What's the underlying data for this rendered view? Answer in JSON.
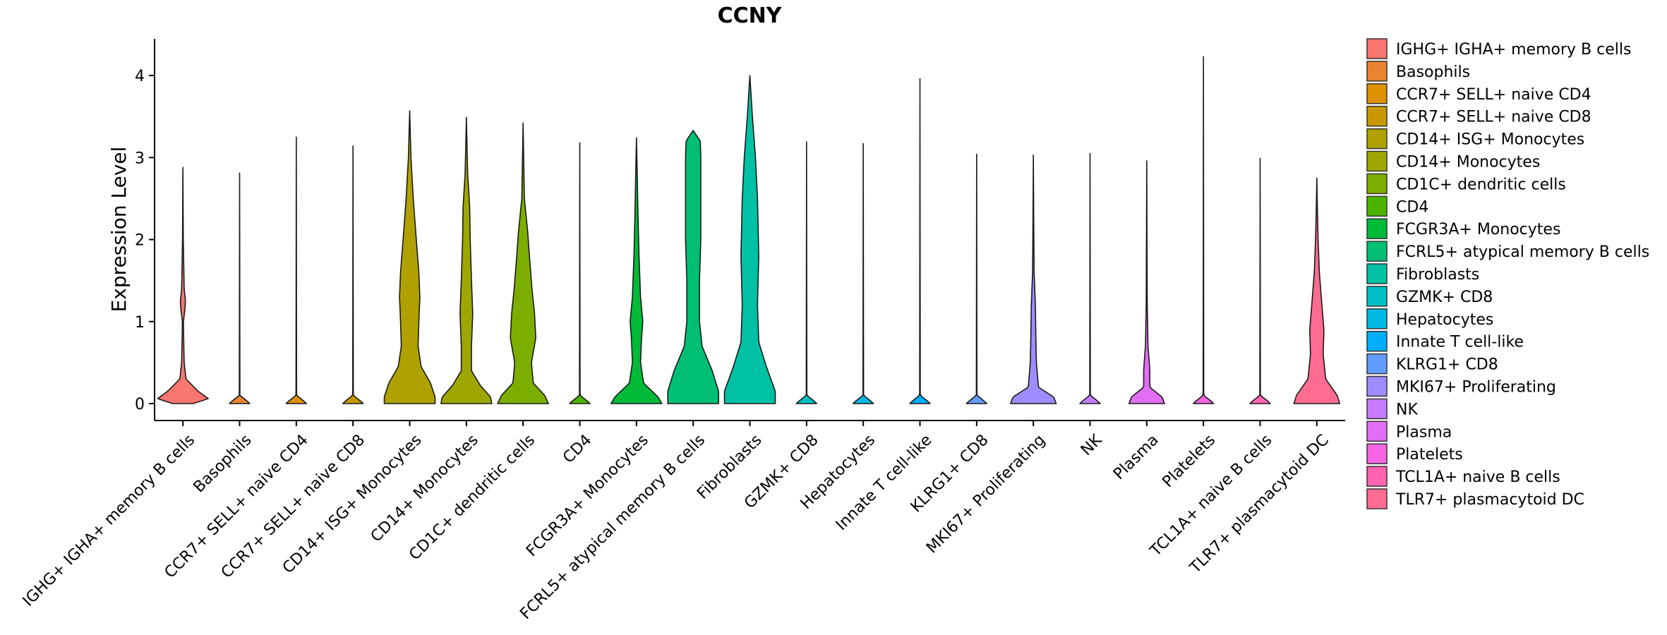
{
  "chart_data": {
    "type": "violin",
    "title": "CCNY",
    "xlabel": "",
    "ylabel": "Expression Level",
    "ylim": [
      -0.2,
      4.45
    ],
    "yticks": [
      0,
      1,
      2,
      3,
      4
    ],
    "legend_position": "right",
    "categories": [
      {
        "name": "IGHG+ IGHA+ memory B cells",
        "legend_label": " IGHG+ IGHA+ memory B cells",
        "color": "#F8766D",
        "max": 2.88,
        "peak": 1.25,
        "profile": [
          [
            0,
            0.4
          ],
          [
            0.06,
            1.0
          ],
          [
            0.15,
            0.6
          ],
          [
            0.3,
            0.12
          ],
          [
            0.5,
            0.05
          ],
          [
            0.8,
            0.03
          ],
          [
            1.0,
            0.02
          ],
          [
            1.15,
            0.08
          ],
          [
            1.25,
            0.1
          ],
          [
            1.4,
            0.05
          ],
          [
            2.0,
            0.015
          ],
          [
            2.88,
            0
          ]
        ]
      },
      {
        "name": "Basophils",
        "color": "#EA8331",
        "max": 2.81,
        "peak": 0.02,
        "profile": [
          [
            0,
            0.4
          ],
          [
            0.03,
            0.3
          ],
          [
            0.1,
            0.012
          ],
          [
            2.81,
            0
          ]
        ]
      },
      {
        "name": "CCR7+ SELL+ naive CD4",
        "color": "#DE9000",
        "max": 3.25,
        "peak": 0.02,
        "profile": [
          [
            0,
            0.4
          ],
          [
            0.03,
            0.3
          ],
          [
            0.1,
            0.012
          ],
          [
            3.25,
            0
          ]
        ]
      },
      {
        "name": "CCR7+ SELL+ naive CD8",
        "color": "#C99800",
        "max": 3.14,
        "peak": 0.02,
        "profile": [
          [
            0,
            0.4
          ],
          [
            0.03,
            0.3
          ],
          [
            0.1,
            0.012
          ],
          [
            3.14,
            0
          ]
        ]
      },
      {
        "name": "CD14+ ISG+ Monocytes",
        "color": "#B0A100",
        "max": 3.57,
        "peak": 0.05,
        "profile": [
          [
            0,
            1.0
          ],
          [
            0.08,
            1.0
          ],
          [
            0.25,
            0.82
          ],
          [
            0.45,
            0.45
          ],
          [
            0.7,
            0.33
          ],
          [
            1.0,
            0.36
          ],
          [
            1.3,
            0.4
          ],
          [
            1.6,
            0.36
          ],
          [
            2.0,
            0.26
          ],
          [
            2.5,
            0.14
          ],
          [
            3.0,
            0.05
          ],
          [
            3.57,
            0
          ]
        ]
      },
      {
        "name": "CD14+ Monocytes",
        "color": "#9DA700",
        "max": 3.49,
        "peak": 0.05,
        "profile": [
          [
            0,
            1.0
          ],
          [
            0.08,
            0.95
          ],
          [
            0.22,
            0.55
          ],
          [
            0.4,
            0.2
          ],
          [
            0.7,
            0.2
          ],
          [
            1.1,
            0.25
          ],
          [
            1.5,
            0.2
          ],
          [
            2.0,
            0.15
          ],
          [
            2.4,
            0.13
          ],
          [
            2.8,
            0.05
          ],
          [
            3.49,
            0
          ]
        ]
      },
      {
        "name": "CD1C+ dendritic cells",
        "color": "#7CAE00",
        "max": 3.42,
        "peak": 0.05,
        "profile": [
          [
            0,
            1.0
          ],
          [
            0.1,
            0.85
          ],
          [
            0.25,
            0.4
          ],
          [
            0.5,
            0.33
          ],
          [
            0.8,
            0.5
          ],
          [
            1.1,
            0.45
          ],
          [
            1.4,
            0.35
          ],
          [
            1.8,
            0.25
          ],
          [
            2.1,
            0.18
          ],
          [
            2.5,
            0.05
          ],
          [
            3.42,
            0
          ]
        ]
      },
      {
        "name": "CD4",
        "color": "#4CB400",
        "max": 3.18,
        "peak": 0.02,
        "profile": [
          [
            0,
            0.4
          ],
          [
            0.03,
            0.3
          ],
          [
            0.1,
            0.012
          ],
          [
            3.18,
            0
          ]
        ]
      },
      {
        "name": "FCGR3A+ Monocytes",
        "color": "#00BA38",
        "max": 3.24,
        "peak": 0.05,
        "profile": [
          [
            0,
            1.0
          ],
          [
            0.08,
            0.85
          ],
          [
            0.25,
            0.28
          ],
          [
            0.5,
            0.16
          ],
          [
            0.8,
            0.2
          ],
          [
            1.0,
            0.25
          ],
          [
            1.3,
            0.16
          ],
          [
            1.8,
            0.1
          ],
          [
            2.3,
            0.06
          ],
          [
            2.8,
            0.03
          ],
          [
            3.24,
            0
          ]
        ]
      },
      {
        "name": "FCRL5+ atypical memory B cells",
        "legend_label": "FCRL5+ atypical memory B cells",
        "color": "#00BF74",
        "max": 3.33,
        "peak": 0.05,
        "profile": [
          [
            0,
            1.0
          ],
          [
            0.15,
            1.0
          ],
          [
            0.4,
            0.75
          ],
          [
            0.7,
            0.35
          ],
          [
            1.0,
            0.25
          ],
          [
            1.5,
            0.25
          ],
          [
            2.0,
            0.3
          ],
          [
            2.5,
            0.3
          ],
          [
            3.0,
            0.3
          ],
          [
            3.2,
            0.28
          ],
          [
            3.33,
            0
          ]
        ]
      },
      {
        "name": "Fibroblasts",
        "color": "#00C1A3",
        "max": 4.0,
        "peak": 0.1,
        "profile": [
          [
            0,
            1.0
          ],
          [
            0.15,
            1.0
          ],
          [
            0.45,
            0.65
          ],
          [
            0.75,
            0.35
          ],
          [
            1.2,
            0.3
          ],
          [
            1.8,
            0.35
          ],
          [
            2.5,
            0.3
          ],
          [
            3.0,
            0.22
          ],
          [
            3.5,
            0.1
          ],
          [
            4.0,
            0
          ]
        ]
      },
      {
        "name": "GZMK+ CD8",
        "color": "#00BFC4",
        "max": 3.19,
        "peak": 0.02,
        "profile": [
          [
            0,
            0.4
          ],
          [
            0.03,
            0.3
          ],
          [
            0.1,
            0.012
          ],
          [
            3.19,
            0
          ]
        ]
      },
      {
        "name": "Hepatocytes",
        "color": "#00B9E3",
        "max": 3.17,
        "peak": 0.02,
        "profile": [
          [
            0,
            0.4
          ],
          [
            0.03,
            0.3
          ],
          [
            0.1,
            0.012
          ],
          [
            3.17,
            0
          ]
        ]
      },
      {
        "name": "Innate T cell-like",
        "color": "#00AEFA",
        "max": 3.96,
        "peak": 0.02,
        "profile": [
          [
            0,
            0.4
          ],
          [
            0.03,
            0.3
          ],
          [
            0.1,
            0.012
          ],
          [
            3.96,
            0
          ]
        ]
      },
      {
        "name": "KLRG1+ CD8",
        "color": "#619CFF",
        "max": 3.04,
        "peak": 0.02,
        "profile": [
          [
            0,
            0.4
          ],
          [
            0.03,
            0.3
          ],
          [
            0.1,
            0.012
          ],
          [
            3.04,
            0
          ]
        ]
      },
      {
        "name": "MKI67+ Proliferating",
        "color": "#9F8CFF",
        "max": 3.03,
        "peak": 0.05,
        "profile": [
          [
            0,
            0.9
          ],
          [
            0.08,
            0.8
          ],
          [
            0.2,
            0.2
          ],
          [
            0.5,
            0.12
          ],
          [
            0.8,
            0.1
          ],
          [
            1.2,
            0.08
          ],
          [
            1.6,
            0.03
          ],
          [
            2.2,
            0.015
          ],
          [
            3.03,
            0
          ]
        ]
      },
      {
        "name": "NK",
        "color": "#C77CFF",
        "max": 3.05,
        "peak": 0.02,
        "profile": [
          [
            0,
            0.4
          ],
          [
            0.03,
            0.3
          ],
          [
            0.1,
            0.012
          ],
          [
            3.05,
            0
          ]
        ]
      },
      {
        "name": "Plasma",
        "color": "#E36EF6",
        "max": 2.96,
        "peak": 0.05,
        "profile": [
          [
            0,
            0.7
          ],
          [
            0.08,
            0.6
          ],
          [
            0.2,
            0.12
          ],
          [
            0.4,
            0.12
          ],
          [
            0.5,
            0.1
          ],
          [
            0.7,
            0.05
          ],
          [
            1.2,
            0.02
          ],
          [
            2.0,
            0.01
          ],
          [
            2.96,
            0
          ]
        ]
      },
      {
        "name": "Platelets",
        "color": "#F564E3",
        "max": 4.23,
        "peak": 0.02,
        "profile": [
          [
            0,
            0.4
          ],
          [
            0.03,
            0.3
          ],
          [
            0.1,
            0.012
          ],
          [
            4.23,
            0
          ]
        ]
      },
      {
        "name": "TCL1A+ naive B cells",
        "color": "#FF64B0",
        "max": 2.99,
        "peak": 0.02,
        "profile": [
          [
            0,
            0.4
          ],
          [
            0.03,
            0.3
          ],
          [
            0.1,
            0.012
          ],
          [
            2.99,
            0
          ]
        ]
      },
      {
        "name": "TLR7+ plasmacytoid DC",
        "color": "#FF6C91",
        "max": 2.75,
        "peak": 0.05,
        "profile": [
          [
            0,
            0.9
          ],
          [
            0.1,
            0.8
          ],
          [
            0.3,
            0.35
          ],
          [
            0.6,
            0.25
          ],
          [
            0.9,
            0.28
          ],
          [
            1.2,
            0.2
          ],
          [
            1.6,
            0.1
          ],
          [
            2.0,
            0.05
          ],
          [
            2.4,
            0.02
          ],
          [
            2.75,
            0
          ]
        ]
      }
    ]
  }
}
